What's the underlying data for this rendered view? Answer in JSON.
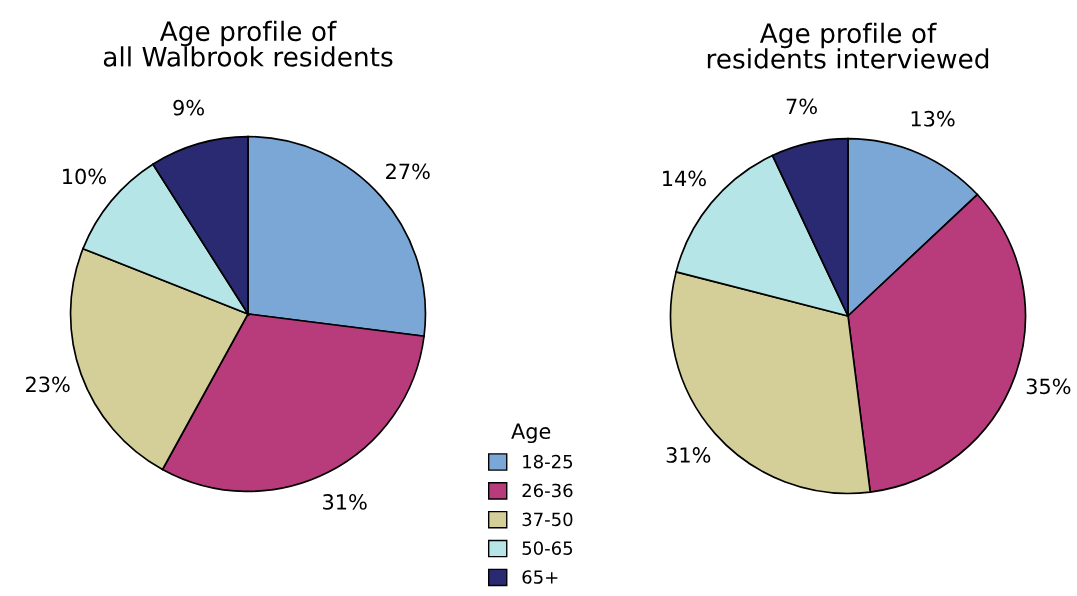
{
  "chart_data": [
    {
      "type": "pie",
      "title": "Age profile of\nall Walbrook residents",
      "categories": [
        "18-25",
        "26-36",
        "37-50",
        "50-65",
        "65+"
      ],
      "values": [
        27,
        31,
        23,
        10,
        9
      ],
      "colors": [
        "#7ba7d6",
        "#b83c7c",
        "#d4cf98",
        "#b5e5e6",
        "#2a2a72"
      ],
      "value_labels": [
        "27%",
        "31%",
        "23%",
        "10%",
        "9%"
      ],
      "legend": "right",
      "legend_title": "Age"
    },
    {
      "type": "pie",
      "title": "Age profile of\nresidents interviewed",
      "categories": [
        null,
        null,
        null,
        null,
        null
      ],
      "values": [
        13,
        35,
        31,
        14,
        7
      ],
      "colors": [
        "#7ba7d6",
        "#b83c7c",
        "#d4cf98",
        "#b5e5e6",
        "#2a2a72"
      ],
      "value_labels": [
        "13%",
        "35%",
        "31%",
        "14%",
        "7%"
      ]
    }
  ]
}
